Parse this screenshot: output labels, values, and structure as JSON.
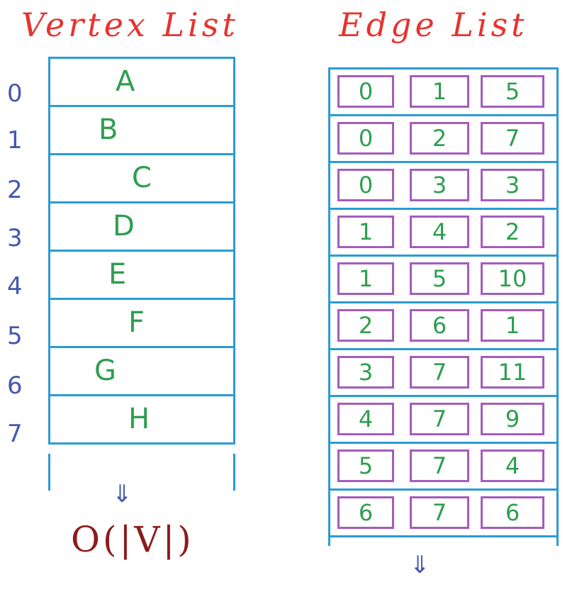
{
  "colors": {
    "title": "#e8322e",
    "grid": "#2a9bd6",
    "cell_border": "#a45cbc",
    "values": "#2e9e4f",
    "indices": "#4457b0",
    "arrow": "#4457b0",
    "complexity": "#8b1c1c"
  },
  "vertex_list": {
    "title": "Vertex List",
    "indices": [
      "0",
      "1",
      "2",
      "3",
      "4",
      "5",
      "6",
      "7"
    ],
    "vertices": [
      "A",
      "B",
      "C",
      "D",
      "E",
      "F",
      "G",
      "H"
    ],
    "arrow_icon": "double-down-arrow-icon",
    "complexity": "O(|V|)"
  },
  "edge_list": {
    "title": "Edge List",
    "edges": [
      [
        "0",
        "1",
        "5"
      ],
      [
        "0",
        "2",
        "7"
      ],
      [
        "0",
        "3",
        "3"
      ],
      [
        "1",
        "4",
        "2"
      ],
      [
        "1",
        "5",
        "10"
      ],
      [
        "2",
        "6",
        "1"
      ],
      [
        "3",
        "7",
        "11"
      ],
      [
        "4",
        "7",
        "9"
      ],
      [
        "5",
        "7",
        "4"
      ],
      [
        "6",
        "7",
        "6"
      ]
    ],
    "arrow_icon": "double-down-arrow-icon"
  }
}
